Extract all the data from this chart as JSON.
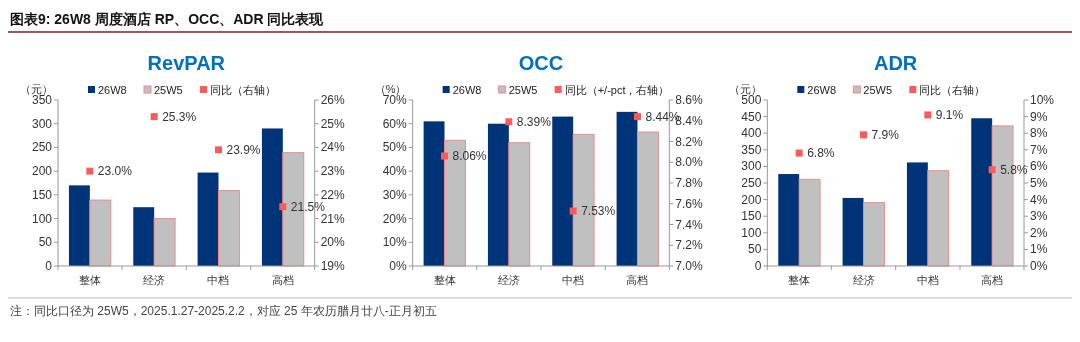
{
  "chart_data": [
    {
      "type": "bar",
      "title": "RevPAR",
      "ylabel": "（元）",
      "annotations": [
        "图表9:  26W8 周度酒店 RP、OCC、ADR 同比表现",
        "注：同比口径为 25W5，2025.1.27-2025.2.2，对应 25 年农历腊月廿八-正月初五"
      ],
      "categories": [
        "整体",
        "经济",
        "中档",
        "高档"
      ],
      "legend": "top",
      "series": [
        {
          "name": "26W8",
          "color": "#003478",
          "values": [
            170,
            124,
            197,
            290
          ]
        },
        {
          "name": "25W5",
          "color": "#c0c0c0",
          "values": [
            139,
            100,
            159,
            239
          ]
        },
        {
          "name": "同比（右轴）",
          "type": "scatter",
          "axis": "y2",
          "color": "#ff5a5a",
          "values": [
            23.0,
            25.3,
            23.9,
            21.5
          ],
          "value_labels": [
            "23.0%",
            "25.3%",
            "23.9%",
            "21.5%"
          ]
        }
      ],
      "ylim": [
        0,
        350
      ],
      "yticks": [
        0,
        50,
        100,
        150,
        200,
        250,
        300,
        350
      ],
      "y2lim": [
        19,
        26
      ],
      "y2ticks": [
        {
          "value": 19,
          "label": "19%"
        },
        {
          "value": 20,
          "label": "20%"
        },
        {
          "value": 21,
          "label": "21%"
        },
        {
          "value": 22,
          "label": "22%"
        },
        {
          "value": 23,
          "label": "23%"
        },
        {
          "value": 24,
          "label": "24%"
        },
        {
          "value": 25,
          "label": "25%"
        },
        {
          "value": 26,
          "label": "26%"
        }
      ],
      "marker": "square"
    },
    {
      "type": "bar",
      "title": "OCC",
      "ylabel": "（%）",
      "categories": [
        "整体",
        "经济",
        "中档",
        "高档"
      ],
      "legend": "top",
      "series": [
        {
          "name": "26W8",
          "color": "#003478",
          "values": [
            61,
            60,
            63,
            65
          ]
        },
        {
          "name": "25W5",
          "color": "#c0c0c0",
          "values": [
            53,
            52,
            55.5,
            56.5
          ]
        },
        {
          "name": "同比（+/-pct，右轴）",
          "type": "scatter",
          "axis": "y2",
          "color": "#ff5a5a",
          "values": [
            8.06,
            8.39,
            7.53,
            8.44
          ],
          "value_labels": [
            "8.06%",
            "8.39%",
            "7.53%",
            "8.44%"
          ]
        }
      ],
      "ylim": [
        0,
        70
      ],
      "yticks": [
        {
          "value": 0,
          "label": "0%"
        },
        {
          "value": 10,
          "label": "10%"
        },
        {
          "value": 20,
          "label": "20%"
        },
        {
          "value": 30,
          "label": "30%"
        },
        {
          "value": 40,
          "label": "40%"
        },
        {
          "value": 50,
          "label": "50%"
        },
        {
          "value": 60,
          "label": "60%"
        },
        {
          "value": 70,
          "label": "70%"
        }
      ],
      "y2lim": [
        7.0,
        8.6
      ],
      "y2ticks": [
        {
          "value": 7.0,
          "label": "7.0%"
        },
        {
          "value": 7.2,
          "label": "7.2%"
        },
        {
          "value": 7.4,
          "label": "7.4%"
        },
        {
          "value": 7.6,
          "label": "7.6%"
        },
        {
          "value": 7.8,
          "label": "7.8%"
        },
        {
          "value": 8.0,
          "label": "8.0%"
        },
        {
          "value": 8.2,
          "label": "8.2%"
        },
        {
          "value": 8.4,
          "label": "8.4%"
        },
        {
          "value": 8.6,
          "label": "8.6%"
        }
      ],
      "marker": "square"
    },
    {
      "type": "bar",
      "title": "ADR",
      "ylabel": "（元）",
      "categories": [
        "整体",
        "经济",
        "中档",
        "高档"
      ],
      "legend": "top",
      "series": [
        {
          "name": "26W8",
          "color": "#003478",
          "values": [
            277,
            205,
            312,
            445
          ]
        },
        {
          "name": "25W5",
          "color": "#c0c0c0",
          "values": [
            261,
            191,
            287,
            422
          ]
        },
        {
          "name": "同比（右轴）",
          "type": "scatter",
          "axis": "y2",
          "color": "#ff5a5a",
          "values": [
            6.8,
            7.9,
            9.1,
            5.8
          ],
          "value_labels": [
            "6.8%",
            "7.9%",
            "9.1%",
            "5.8%"
          ]
        }
      ],
      "ylim": [
        0,
        500
      ],
      "yticks": [
        0,
        50,
        100,
        150,
        200,
        250,
        300,
        350,
        400,
        450,
        500
      ],
      "y2lim": [
        0,
        10
      ],
      "y2ticks": [
        {
          "value": 0,
          "label": "0%"
        },
        {
          "value": 1,
          "label": "1%"
        },
        {
          "value": 2,
          "label": "2%"
        },
        {
          "value": 3,
          "label": "3%"
        },
        {
          "value": 4,
          "label": "4%"
        },
        {
          "value": 5,
          "label": "5%"
        },
        {
          "value": 6,
          "label": "6%"
        },
        {
          "value": 7,
          "label": "7%"
        },
        {
          "value": 8,
          "label": "8%"
        },
        {
          "value": 9,
          "label": "9%"
        },
        {
          "value": 10,
          "label": "10%"
        }
      ],
      "marker": "square"
    }
  ]
}
